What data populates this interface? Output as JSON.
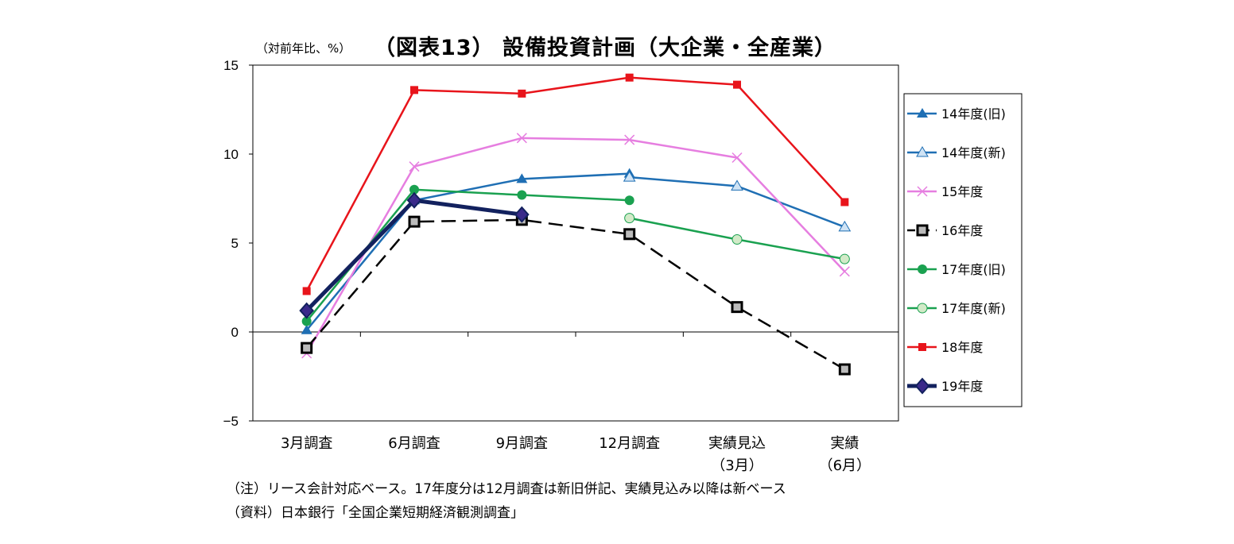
{
  "chart_data": {
    "type": "line",
    "title": "（図表13） 設備投資計画（大企業・全産業）",
    "ylabel": "（対前年比、%）",
    "ylim": [
      -5,
      15
    ],
    "yticks": [
      -5,
      0,
      5,
      10,
      15
    ],
    "grid": false,
    "legend_position": "right",
    "categories": [
      "3月調査",
      "6月調査",
      "9月調査",
      "12月調査",
      "実績見込\n（3月）",
      "実績\n（6月）"
    ],
    "series": [
      {
        "name": "14年度(旧)",
        "color": "#1f6fb4",
        "marker": "triangle-filled",
        "values": [
          0.1,
          7.4,
          8.6,
          8.9,
          null,
          null
        ]
      },
      {
        "name": "14年度(新)",
        "color": "#1f6fb4",
        "marker": "triangle-open",
        "values": [
          null,
          null,
          null,
          8.7,
          8.2,
          5.9
        ]
      },
      {
        "name": "15年度",
        "color": "#e67ee0",
        "marker": "x",
        "values": [
          -1.2,
          9.3,
          10.9,
          10.8,
          9.8,
          3.4
        ]
      },
      {
        "name": "16年度",
        "color": "#000000",
        "marker": "square-open",
        "dashed": true,
        "values": [
          -0.9,
          6.2,
          6.3,
          5.5,
          1.4,
          -2.1
        ]
      },
      {
        "name": "17年度(旧)",
        "color": "#1aa150",
        "marker": "circle-filled",
        "values": [
          0.6,
          8.0,
          7.7,
          7.4,
          null,
          null
        ]
      },
      {
        "name": "17年度(新)",
        "color": "#1aa150",
        "marker": "circle-open",
        "values": [
          null,
          null,
          null,
          6.4,
          5.2,
          4.1
        ]
      },
      {
        "name": "18年度",
        "color": "#e8141b",
        "marker": "square-filled",
        "values": [
          2.3,
          13.6,
          13.4,
          14.3,
          13.9,
          7.3
        ]
      },
      {
        "name": "19年度",
        "color": "#12215e",
        "marker": "diamond",
        "thick": true,
        "values": [
          1.2,
          7.4,
          6.6,
          null,
          null,
          null
        ]
      }
    ]
  },
  "notes": {
    "note": "（注）リース会計対応ベース。17年度分は12月調査は新旧併記、実績見込み以降は新ベース",
    "source": "（資料）日本銀行「全国企業短期経済観測調査」"
  }
}
